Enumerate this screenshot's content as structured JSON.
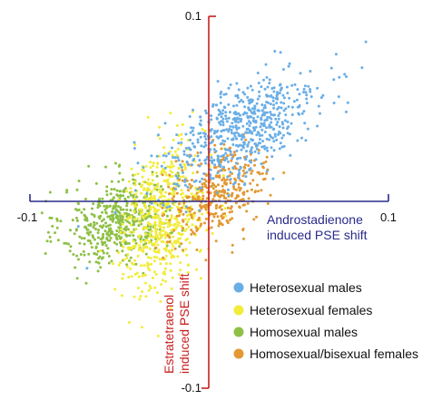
{
  "chart_data": {
    "type": "scatter",
    "xlabel": [
      "Androstadienone",
      "induced PSE shift"
    ],
    "ylabel": [
      "Estratetraenol",
      "induced PSE shift"
    ],
    "xlim": [
      -0.1,
      0.1
    ],
    "ylim": [
      -0.1,
      0.1
    ],
    "x_ticks": [
      {
        "value": -0.1,
        "label": "-0.1"
      },
      {
        "value": 0.1,
        "label": "0.1"
      }
    ],
    "y_ticks": [
      {
        "value": 0.1,
        "label": "0.1"
      },
      {
        "value": -0.1,
        "label": "-0.1"
      }
    ],
    "colors": {
      "x_axis": "#2a2a8a",
      "y_axis": "#c81e1e"
    },
    "legend_position": "bottom-right",
    "series": [
      {
        "name": "Heterosexual males",
        "color": "#6aaee6",
        "center": [
          0.018,
          0.038
        ],
        "spread": [
          0.022,
          0.016
        ],
        "correlation": 0.6,
        "count": 620
      },
      {
        "name": "Heterosexual females",
        "color": "#f2ec3a",
        "center": [
          -0.026,
          -0.008
        ],
        "spread": [
          0.012,
          0.02
        ],
        "correlation": 0.3,
        "count": 560
      },
      {
        "name": "Homosexual males",
        "color": "#8ec046",
        "center": [
          -0.05,
          -0.01
        ],
        "spread": [
          0.016,
          0.012
        ],
        "correlation": 0.25,
        "count": 500
      },
      {
        "name": "Homosexual/bisexual females",
        "color": "#e39833",
        "center": [
          0.005,
          0.005
        ],
        "spread": [
          0.014,
          0.012
        ],
        "correlation": 0.35,
        "count": 360
      }
    ]
  }
}
